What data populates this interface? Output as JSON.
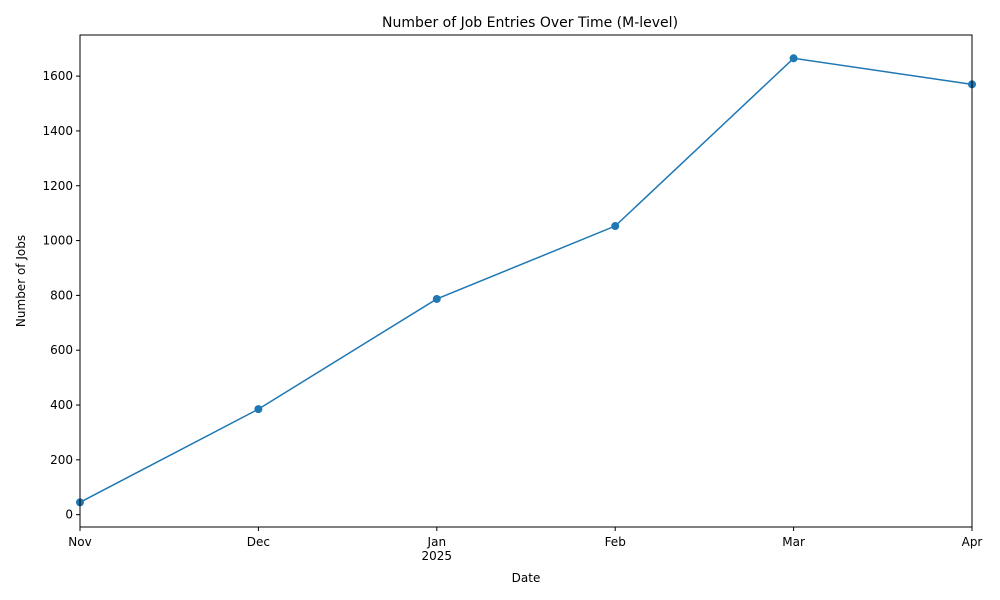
{
  "chart_data": {
    "type": "line",
    "title": "Number of Job Entries Over Time (M-level)",
    "xlabel": "Date",
    "ylabel": "Number of Jobs",
    "x": [
      "2024-11",
      "2024-12",
      "2025-01",
      "2025-02",
      "2025-03",
      "2025-04"
    ],
    "x_tick_labels": [
      "Nov",
      "Dec",
      "Jan",
      "Feb",
      "Mar",
      "Apr"
    ],
    "x_year_label": "2025",
    "series": [
      {
        "values": [
          45,
          385,
          787,
          1053,
          1665,
          1570
        ],
        "color": "#1f77b4"
      }
    ],
    "ylim": [
      -45,
      1750
    ],
    "yticks": [
      0,
      200,
      400,
      600,
      800,
      1000,
      1200,
      1400,
      1600
    ],
    "grid": false,
    "legend": "none"
  }
}
